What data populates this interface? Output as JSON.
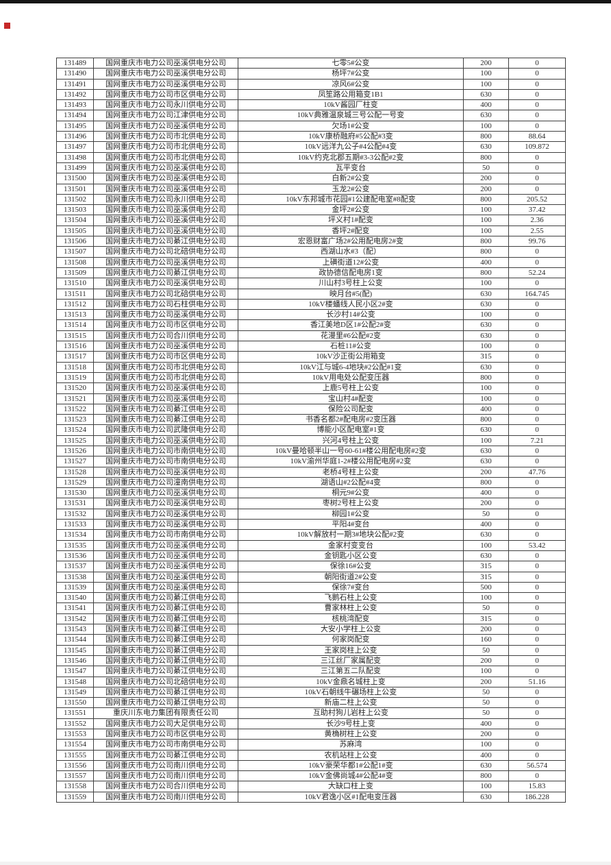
{
  "page": {
    "background": "#ffffff",
    "top_bar_color": "#161616",
    "marker_color": "#c62828",
    "table_border_color": "#3f3f3f",
    "table_text_color": "#262626"
  },
  "table": {
    "column_keys": [
      "id",
      "company",
      "name",
      "capacity",
      "value"
    ],
    "rows": [
      [
        "131489",
        "国网重庆市电力公司巫溪供电分公司",
        "七零5#公变",
        "200",
        "0"
      ],
      [
        "131490",
        "国网重庆市电力公司巫溪供电分公司",
        "杨坪7#公变",
        "100",
        "0"
      ],
      [
        "131491",
        "国网重庆市电力公司巫溪供电分公司",
        "凉风6#公变",
        "100",
        "0"
      ],
      [
        "131492",
        "国网重庆市电力公司市区供电分公司",
        "凤笙路公用箱变1B1",
        "630",
        "0"
      ],
      [
        "131493",
        "国网重庆市电力公司永川供电分公司",
        "10kV酱园厂柱变",
        "400",
        "0"
      ],
      [
        "131494",
        "国网重庆市电力公司江津供电分公司",
        "10kV典雅温泉城三号公配一号变",
        "630",
        "0"
      ],
      [
        "131495",
        "国网重庆市电力公司巫溪供电分公司",
        "欠场1#公变",
        "100",
        "0"
      ],
      [
        "131496",
        "国网重庆市电力公司市北供电分公司",
        "10kV康桥融府#5公配#3变",
        "800",
        "88.64"
      ],
      [
        "131497",
        "国网重庆市电力公司市北供电分公司",
        "10kV远洋九公子#4公配#4变",
        "630",
        "109.872"
      ],
      [
        "131498",
        "国网重庆市电力公司市北供电分公司",
        "10kV约克北郡五期#3-3公配#2变",
        "800",
        "0"
      ],
      [
        "131499",
        "国网重庆市电力公司巫溪供电分公司",
        "瓦平变台",
        "50",
        "0"
      ],
      [
        "131500",
        "国网重庆市电力公司巫溪供电分公司",
        "白新2#公变",
        "200",
        "0"
      ],
      [
        "131501",
        "国网重庆市电力公司巫溪供电分公司",
        "玉龙2#公变",
        "200",
        "0"
      ],
      [
        "131502",
        "国网重庆市电力公司永川供电分公司",
        "10kV东邦城市花园#1公建配电室#8配变",
        "800",
        "205.52"
      ],
      [
        "131503",
        "国网重庆市电力公司巫溪供电分公司",
        "金坪2#公变",
        "100",
        "37.42"
      ],
      [
        "131504",
        "国网重庆市电力公司巫溪供电分公司",
        "坪义村1#配变",
        "100",
        "2.36"
      ],
      [
        "131505",
        "国网重庆市电力公司巫溪供电分公司",
        "香坪2#配变",
        "100",
        "2.55"
      ],
      [
        "131506",
        "国网重庆市电力公司綦江供电分公司",
        "宏恩财富广场2#公用配电房2#变",
        "800",
        "99.76"
      ],
      [
        "131507",
        "国网重庆市电力公司北碚供电分公司",
        "西湖山水#3（配）",
        "800",
        "0"
      ],
      [
        "131508",
        "国网重庆市电力公司巫溪供电分公司",
        "上磺街道12#公变",
        "400",
        "0"
      ],
      [
        "131509",
        "国网重庆市电力公司綦江供电分公司",
        "政协德信配电房1变",
        "800",
        "52.24"
      ],
      [
        "131510",
        "国网重庆市电力公司巫溪供电分公司",
        "川山村3号柱上公变",
        "100",
        "0"
      ],
      [
        "131511",
        "国网重庆市电力公司北碚供电分公司",
        "映月台#5(配)",
        "630",
        "164.745"
      ],
      [
        "131512",
        "国网重庆市电力公司石柱供电分公司",
        "10kV楼蟠线人民小区2#变",
        "630",
        "0"
      ],
      [
        "131513",
        "国网重庆市电力公司巫溪供电分公司",
        "长沙村14#公变",
        "100",
        "0"
      ],
      [
        "131514",
        "国网重庆市电力公司市区供电分公司",
        "香江美地D区1#公配2#变",
        "630",
        "0"
      ],
      [
        "131515",
        "国网重庆市电力公司合川供电分公司",
        "花漫里#6公配#2变",
        "630",
        "0"
      ],
      [
        "131516",
        "国网重庆市电力公司巫溪供电分公司",
        "石桩11#公变",
        "100",
        "0"
      ],
      [
        "131517",
        "国网重庆市电力公司市区供电分公司",
        "10kV沙正街公用箱变",
        "315",
        "0"
      ],
      [
        "131518",
        "国网重庆市电力公司市北供电分公司",
        "10kV江与城6-4地块#2公配#1变",
        "630",
        "0"
      ],
      [
        "131519",
        "国网重庆市电力公司市北供电分公司",
        "10kV用电处公配变压器",
        "800",
        "0"
      ],
      [
        "131520",
        "国网重庆市电力公司巫溪供电分公司",
        "上鹿5号柱上公变",
        "100",
        "0"
      ],
      [
        "131521",
        "国网重庆市电力公司巫溪供电分公司",
        "宝山村4#配变",
        "100",
        "0"
      ],
      [
        "131522",
        "国网重庆市电力公司綦江供电分公司",
        "保险公司配变",
        "400",
        "0"
      ],
      [
        "131523",
        "国网重庆市电力公司綦江供电分公司",
        "书香名都2#配电房#2变压器",
        "800",
        "0"
      ],
      [
        "131524",
        "国网重庆市电力公司武隆供电分公司",
        "博能小区配电室#1变",
        "630",
        "0"
      ],
      [
        "131525",
        "国网重庆市电力公司巫溪供电分公司",
        "兴河4号柱上公变",
        "100",
        "7.21"
      ],
      [
        "131526",
        "国网重庆市电力公司市南供电分公司",
        "10kV曼哈顿半山一号60-61#楼公用配电房#2变",
        "630",
        "0"
      ],
      [
        "131527",
        "国网重庆市电力公司市南供电分公司",
        "10kV渝州华庭1-2#楼公用配电房#2变",
        "630",
        "0"
      ],
      [
        "131528",
        "国网重庆市电力公司巫溪供电分公司",
        "老桥4号柱上公变",
        "200",
        "47.76"
      ],
      [
        "131529",
        "国网重庆市电力公司潼南供电分公司",
        "湖语山#2公配#4变",
        "800",
        "0"
      ],
      [
        "131530",
        "国网重庆市电力公司巫溪供电分公司",
        "桐元9#公变",
        "400",
        "0"
      ],
      [
        "131531",
        "国网重庆市电力公司巫溪供电分公司",
        "枣树2号柱上公变",
        "200",
        "0"
      ],
      [
        "131532",
        "国网重庆市电力公司巫溪供电分公司",
        "柳园1#公变",
        "50",
        "0"
      ],
      [
        "131533",
        "国网重庆市电力公司巫溪供电分公司",
        "平阳4#变台",
        "400",
        "0"
      ],
      [
        "131534",
        "国网重庆市电力公司市南供电分公司",
        "10kV解放村一期3#地块公配#2变",
        "630",
        "0"
      ],
      [
        "131535",
        "国网重庆市电力公司巫溪供电分公司",
        "金家村变变台",
        "100",
        "53.42"
      ],
      [
        "131536",
        "国网重庆市电力公司巫溪供电分公司",
        "金钥匙小区公变",
        "630",
        "0"
      ],
      [
        "131537",
        "国网重庆市电力公司巫溪供电分公司",
        "保徐16#公变",
        "315",
        "0"
      ],
      [
        "131538",
        "国网重庆市电力公司巫溪供电分公司",
        "朝阳街道2#公变",
        "315",
        "0"
      ],
      [
        "131539",
        "国网重庆市电力公司巫溪供电分公司",
        "保徐7#变台",
        "500",
        "0"
      ],
      [
        "131540",
        "国网重庆市电力公司綦江供电分公司",
        "飞鹅石柱上公变",
        "100",
        "0"
      ],
      [
        "131541",
        "国网重庆市电力公司綦江供电分公司",
        "曹家林柱上公变",
        "50",
        "0"
      ],
      [
        "131542",
        "国网重庆市电力公司綦江供电分公司",
        "核桃湾配变",
        "315",
        "0"
      ],
      [
        "131543",
        "国网重庆市电力公司綦江供电分公司",
        "大安小学柱上公变",
        "200",
        "0"
      ],
      [
        "131544",
        "国网重庆市电力公司綦江供电分公司",
        "何家岗配变",
        "160",
        "0"
      ],
      [
        "131545",
        "国网重庆市电力公司綦江供电分公司",
        "王家岗柱上公变",
        "50",
        "0"
      ],
      [
        "131546",
        "国网重庆市电力公司綦江供电分公司",
        "三江丝厂家属配变",
        "200",
        "0"
      ],
      [
        "131547",
        "国网重庆市电力公司綦江供电分公司",
        "三江第五二队配变",
        "100",
        "0"
      ],
      [
        "131548",
        "国网重庆市电力公司北碚供电分公司",
        "10kV金鼎名城柱上变",
        "200",
        "51.16"
      ],
      [
        "131549",
        "国网重庆市电力公司綦江供电分公司",
        "10kV石朝线牛碾场柱上公变",
        "50",
        "0"
      ],
      [
        "131550",
        "国网重庆市电力公司綦江供电分公司",
        "新庙二柱上公变",
        "50",
        "0"
      ],
      [
        "131551",
        "重庆川东电力集团有限责任公司",
        "互助村狗儿岩柱上公变",
        "50",
        "0"
      ],
      [
        "131552",
        "国网重庆市电力公司大足供电分公司",
        "长沙9号柱上变",
        "400",
        "0"
      ],
      [
        "131553",
        "国网重庆市电力公司市区供电分公司",
        "黄桷树柱上公变",
        "200",
        "0"
      ],
      [
        "131554",
        "国网重庆市电力公司市南供电分公司",
        "苏麻湾",
        "100",
        "0"
      ],
      [
        "131555",
        "国网重庆市电力公司綦江供电分公司",
        "农机站柱上公变",
        "400",
        "0"
      ],
      [
        "131556",
        "国网重庆市电力公司南川供电分公司",
        "10kV豪荣华都1#公配1#变",
        "630",
        "56.574"
      ],
      [
        "131557",
        "国网重庆市电力公司南川供电分公司",
        "10kV金佛尚城4#公配4#变",
        "800",
        "0"
      ],
      [
        "131558",
        "国网重庆市电力公司合川供电分公司",
        "大缺口柱上变",
        "100",
        "15.83"
      ],
      [
        "131559",
        "国网重庆市电力公司南川供电分公司",
        "10kV君逸小区#1配电变压器",
        "630",
        "186.228"
      ]
    ]
  }
}
